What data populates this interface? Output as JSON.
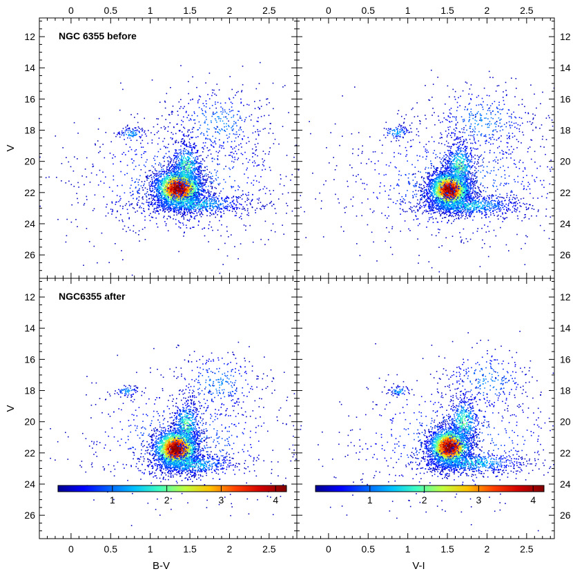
{
  "chart_data": {
    "type": "scatter",
    "description_style": "density-coloured colour-magnitude diagrams",
    "shared_y": {
      "label": "V",
      "ylim": [
        27.5,
        10.8
      ],
      "ticks": [
        12,
        14,
        16,
        18,
        20,
        22,
        24,
        26
      ],
      "inverted": true
    },
    "columns": [
      {
        "xlabel": "B-V",
        "xlim": [
          -0.4,
          2.85
        ],
        "ticks": [
          0,
          0.5,
          1,
          1.5,
          2,
          2.5
        ],
        "tick_labels": [
          "0",
          "0.5",
          "1",
          "1.5",
          "2",
          "2.5"
        ],
        "minor_step": 0.1
      },
      {
        "xlabel": "V-I",
        "xlim": [
          -0.4,
          2.85
        ],
        "ticks": [
          0,
          0.5,
          1,
          1.5,
          2,
          2.5
        ],
        "tick_labels": [
          "0",
          "0.5",
          "1",
          "1.5",
          "2",
          "2.5"
        ],
        "minor_step": 0.1
      }
    ],
    "panels": [
      {
        "id": "top-left",
        "row": 0,
        "col": 0,
        "label": "NGC 6355 before",
        "clusters": [
          {
            "x": 1.35,
            "y": 21.7,
            "sx": 0.16,
            "sy": 0.65,
            "n": 2600,
            "peak": 4.2
          },
          {
            "x": 1.45,
            "y": 20.3,
            "sx": 0.1,
            "sy": 0.8,
            "n": 500,
            "peak": 2.0
          },
          {
            "x": 1.55,
            "y": 22.7,
            "sx": 0.35,
            "sy": 0.35,
            "n": 700,
            "peak": 1.6
          },
          {
            "x": 0.75,
            "y": 18.2,
            "sx": 0.1,
            "sy": 0.25,
            "n": 90,
            "peak": 1.3
          },
          {
            "x": 1.85,
            "y": 17.5,
            "sx": 0.35,
            "sy": 1.2,
            "n": 350,
            "peak": 1.1
          },
          {
            "x": 1.4,
            "y": 21.2,
            "sx": 0.75,
            "sy": 2.1,
            "n": 800,
            "peak": 1.0
          }
        ]
      },
      {
        "id": "top-right",
        "row": 0,
        "col": 1,
        "label": "",
        "clusters": [
          {
            "x": 1.52,
            "y": 21.8,
            "sx": 0.14,
            "sy": 0.65,
            "n": 2600,
            "peak": 4.1
          },
          {
            "x": 1.65,
            "y": 20.3,
            "sx": 0.1,
            "sy": 0.8,
            "n": 500,
            "peak": 2.0
          },
          {
            "x": 1.75,
            "y": 22.8,
            "sx": 0.35,
            "sy": 0.35,
            "n": 700,
            "peak": 1.6
          },
          {
            "x": 0.85,
            "y": 18.1,
            "sx": 0.1,
            "sy": 0.25,
            "n": 90,
            "peak": 1.3
          },
          {
            "x": 1.95,
            "y": 17.4,
            "sx": 0.35,
            "sy": 1.2,
            "n": 350,
            "peak": 1.1
          },
          {
            "x": 1.6,
            "y": 21.3,
            "sx": 0.8,
            "sy": 2.1,
            "n": 800,
            "peak": 1.0
          }
        ]
      },
      {
        "id": "bottom-left",
        "row": 1,
        "col": 0,
        "label": "NGC6355 after",
        "clusters": [
          {
            "x": 1.32,
            "y": 21.7,
            "sx": 0.15,
            "sy": 0.65,
            "n": 2400,
            "peak": 4.2
          },
          {
            "x": 1.45,
            "y": 20.2,
            "sx": 0.09,
            "sy": 0.8,
            "n": 450,
            "peak": 2.0
          },
          {
            "x": 1.5,
            "y": 22.7,
            "sx": 0.3,
            "sy": 0.35,
            "n": 600,
            "peak": 1.6
          },
          {
            "x": 0.7,
            "y": 18.0,
            "sx": 0.08,
            "sy": 0.2,
            "n": 70,
            "peak": 1.3
          },
          {
            "x": 1.85,
            "y": 17.5,
            "sx": 0.3,
            "sy": 1.1,
            "n": 280,
            "peak": 1.1
          },
          {
            "x": 1.4,
            "y": 21.2,
            "sx": 0.7,
            "sy": 2.0,
            "n": 600,
            "peak": 1.0
          }
        ]
      },
      {
        "id": "bottom-right",
        "row": 1,
        "col": 1,
        "label": "",
        "clusters": [
          {
            "x": 1.52,
            "y": 21.6,
            "sx": 0.14,
            "sy": 0.65,
            "n": 2400,
            "peak": 4.2
          },
          {
            "x": 1.7,
            "y": 20.0,
            "sx": 0.1,
            "sy": 0.85,
            "n": 450,
            "peak": 2.0
          },
          {
            "x": 1.8,
            "y": 22.6,
            "sx": 0.35,
            "sy": 0.35,
            "n": 600,
            "peak": 1.6
          },
          {
            "x": 0.88,
            "y": 18.0,
            "sx": 0.08,
            "sy": 0.2,
            "n": 70,
            "peak": 1.3
          },
          {
            "x": 2.0,
            "y": 17.3,
            "sx": 0.3,
            "sy": 1.1,
            "n": 280,
            "peak": 1.1
          },
          {
            "x": 1.6,
            "y": 21.2,
            "sx": 0.8,
            "sy": 2.0,
            "n": 600,
            "peak": 1.0
          }
        ]
      }
    ],
    "colorbar": {
      "range": [
        0,
        4.2
      ],
      "ticks": [
        1,
        2,
        3,
        4
      ],
      "tick_labels": [
        "1",
        "2",
        "3",
        "4"
      ],
      "colors": [
        "#00008f",
        "#0000ff",
        "#0060ff",
        "#00c0ff",
        "#40ffc0",
        "#c0ff40",
        "#ffc000",
        "#ff4000",
        "#d00000",
        "#800000"
      ],
      "location": "bottom of lower panels"
    }
  }
}
